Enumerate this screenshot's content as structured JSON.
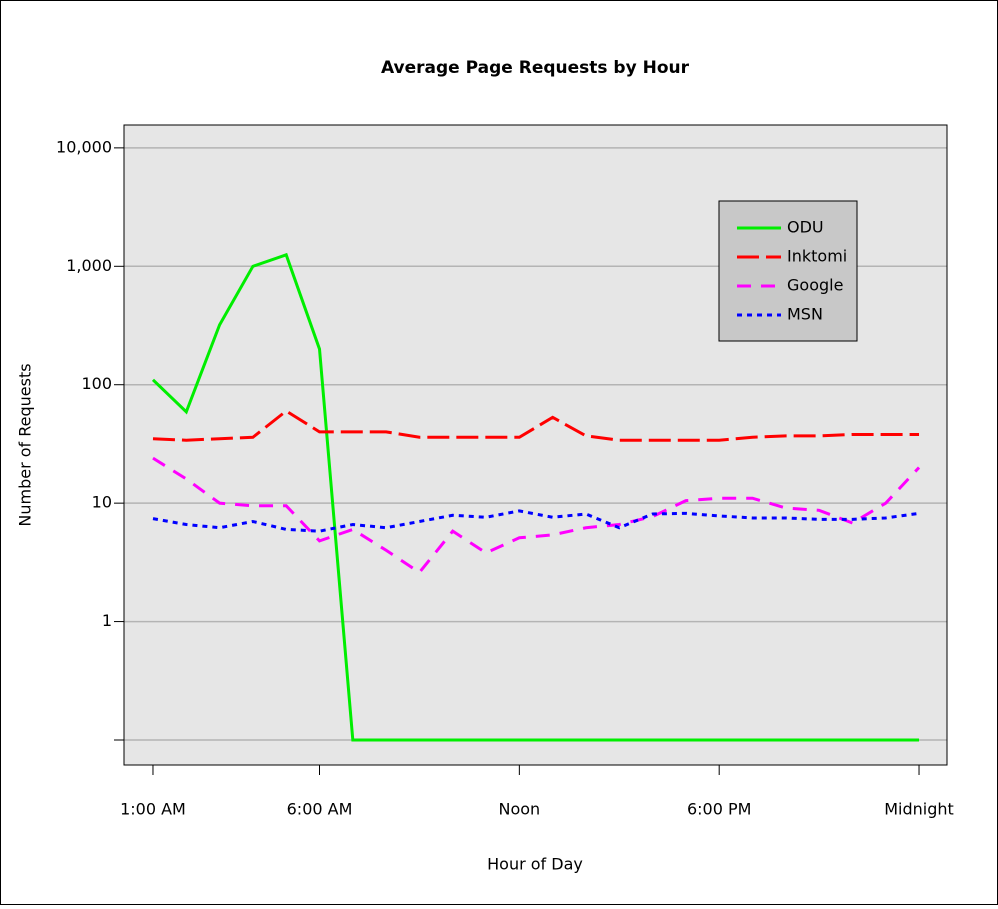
{
  "chart_data": {
    "type": "line",
    "title": "Average Page Requests by Hour",
    "x_label": "Hour of Day",
    "y_label": "Number of Requests",
    "log_y": true,
    "grid": true,
    "legend": "upper right",
    "x": [
      1,
      2,
      3,
      4,
      5,
      6,
      7,
      8,
      9,
      10,
      11,
      12,
      13,
      14,
      15,
      16,
      17,
      18,
      19,
      20,
      21,
      22,
      23,
      24
    ],
    "xlim": [
      0.13,
      24.84
    ],
    "xticks": [
      {
        "value": 1,
        "label": "1:00 AM"
      },
      {
        "value": 6,
        "label": "6:00 AM"
      },
      {
        "value": 12,
        "label": "Noon"
      },
      {
        "value": 18,
        "label": "6:00 PM"
      },
      {
        "value": 24,
        "label": "Midnight"
      }
    ],
    "ylim": [
      0.0615,
      15600
    ],
    "yticks": [
      {
        "value": 0.1,
        "label": null
      },
      1,
      10,
      {
        "value": 100,
        "label": "100"
      },
      {
        "value": 1000,
        "label": "1,000"
      },
      {
        "value": 10000,
        "label": "10,000"
      }
    ],
    "series": [
      {
        "name": "ODU",
        "color": "#00ee00",
        "style": "solid",
        "values": [
          110,
          59,
          320,
          1000,
          1250,
          200,
          0.1,
          0.1,
          0.1,
          0.1,
          0.1,
          0.1,
          0.1,
          0.1,
          0.1,
          0.1,
          0.1,
          0.1,
          0.1,
          0.1,
          0.1,
          0.1,
          0.1,
          0.1
        ]
      },
      {
        "name": "Inktomi",
        "color": "#ff0000",
        "style": "longdash",
        "values": [
          35,
          34,
          35,
          36,
          60,
          40,
          40,
          40,
          36,
          36,
          36,
          36,
          53,
          37,
          34,
          34,
          34,
          34,
          36,
          37,
          37,
          38,
          38,
          38
        ]
      },
      {
        "name": "Google",
        "color": "#ff00ff",
        "style": "dash",
        "values": [
          24,
          16,
          10,
          9.5,
          9.5,
          4.8,
          6,
          4,
          2.6,
          5.8,
          3.8,
          5.1,
          5.4,
          6.2,
          6.6,
          7.7,
          10.5,
          11,
          11,
          9.1,
          8.7,
          6.8,
          10,
          20
        ]
      },
      {
        "name": "MSN",
        "color": "#0000ff",
        "style": "dot",
        "values": [
          7.4,
          6.6,
          6.2,
          7,
          6,
          5.8,
          6.6,
          6.2,
          7,
          7.9,
          7.6,
          8.6,
          7.6,
          8.1,
          6.2,
          8.1,
          8.2,
          7.8,
          7.5,
          7.5,
          7.3,
          7.3,
          7.5,
          8.2
        ]
      }
    ]
  }
}
